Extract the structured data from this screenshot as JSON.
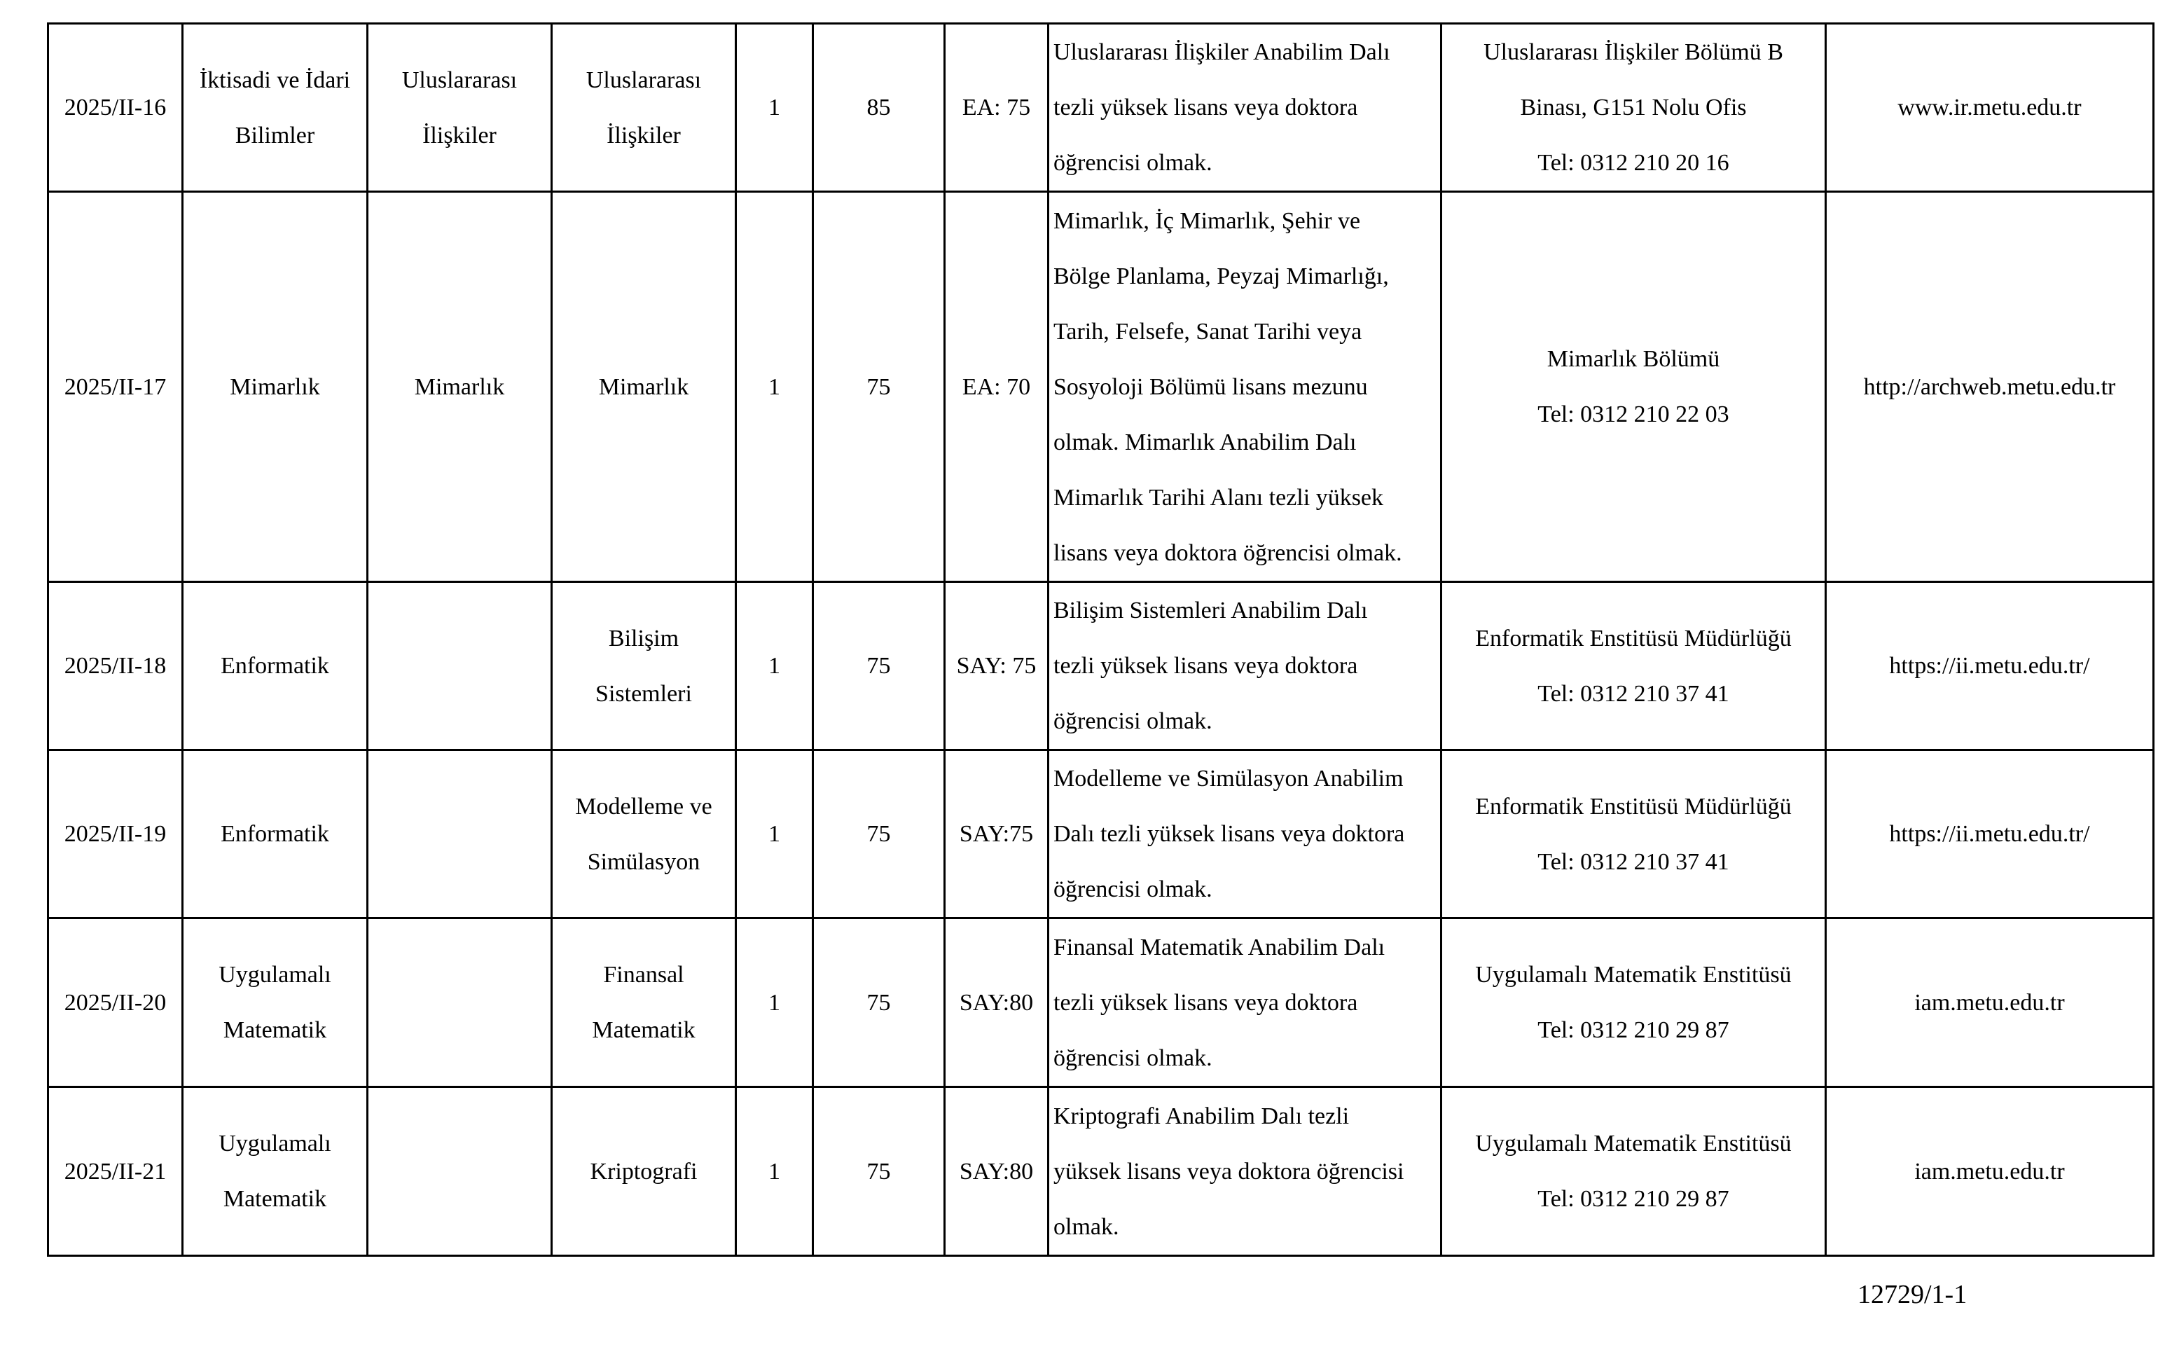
{
  "rows": [
    {
      "code": "2025/II-16",
      "unit": [
        "İktisadi ve İdari",
        "Bilimler"
      ],
      "dept": [
        "Uluslararası",
        "İlişkiler"
      ],
      "field": [
        "Uluslararası",
        "İlişkiler"
      ],
      "quota": "1",
      "ales": "85",
      "score": "EA: 75",
      "req": [
        "Uluslararası İlişkiler Anabilim Dalı",
        "tezli yüksek lisans veya doktora",
        "öğrencisi olmak."
      ],
      "contact": [
        "Uluslararası İlişkiler Bölümü B",
        "Binası, G151 Nolu Ofis",
        "Tel: 0312 210 20 16"
      ],
      "web": "www.ir.metu.edu.tr"
    },
    {
      "code": "2025/II-17",
      "unit": [
        "Mimarlık"
      ],
      "dept": [
        "Mimarlık"
      ],
      "field": [
        "Mimarlık"
      ],
      "quota": "1",
      "ales": "75",
      "score": "EA: 70",
      "req": [
        "Mimarlık, İç Mimarlık, Şehir ve",
        "Bölge Planlama, Peyzaj Mimarlığı,",
        "Tarih, Felsefe, Sanat Tarihi veya",
        "Sosyoloji Bölümü lisans mezunu",
        "olmak. Mimarlık Anabilim Dalı",
        "Mimarlık Tarihi Alanı tezli yüksek",
        "lisans veya doktora öğrencisi olmak."
      ],
      "contact": [
        "Mimarlık Bölümü",
        "Tel: 0312 210 22 03"
      ],
      "web": "http://archweb.metu.edu.tr"
    },
    {
      "code": "2025/II-18",
      "unit": [
        "Enformatik"
      ],
      "dept": [],
      "field": [
        "Bilişim",
        "Sistemleri"
      ],
      "quota": "1",
      "ales": "75",
      "score": "SAY: 75",
      "req": [
        "Bilişim Sistemleri Anabilim Dalı",
        "tezli yüksek lisans veya doktora",
        "öğrencisi olmak."
      ],
      "contact": [
        "Enformatik Enstitüsü Müdürlüğü",
        "Tel: 0312 210 37 41"
      ],
      "web": "https://ii.metu.edu.tr/"
    },
    {
      "code": "2025/II-19",
      "unit": [
        "Enformatik"
      ],
      "dept": [],
      "field": [
        "Modelleme ve",
        "Simülasyon"
      ],
      "quota": "1",
      "ales": "75",
      "score": "SAY:75",
      "req": [
        "Modelleme ve Simülasyon Anabilim",
        "Dalı tezli yüksek lisans veya doktora",
        "öğrencisi olmak."
      ],
      "contact": [
        "Enformatik Enstitüsü Müdürlüğü",
        "Tel: 0312 210 37 41"
      ],
      "web": "https://ii.metu.edu.tr/"
    },
    {
      "code": "2025/II-20",
      "unit": [
        "Uygulamalı",
        "Matematik"
      ],
      "dept": [],
      "field": [
        "Finansal",
        "Matematik"
      ],
      "quota": "1",
      "ales": "75",
      "score": "SAY:80",
      "req": [
        "Finansal Matematik Anabilim Dalı",
        "tezli yüksek lisans veya doktora",
        "öğrencisi olmak."
      ],
      "contact": [
        "Uygulamalı Matematik Enstitüsü",
        "Tel: 0312 210 29 87"
      ],
      "web": "iam.metu.edu.tr"
    },
    {
      "code": "2025/II-21",
      "unit": [
        "Uygulamalı",
        "Matematik"
      ],
      "dept": [],
      "field": [
        "Kriptografi"
      ],
      "quota": "1",
      "ales": "75",
      "score": "SAY:80",
      "req": [
        "Kriptografi Anabilim Dalı tezli",
        "yüksek lisans veya doktora öğrencisi",
        "olmak."
      ],
      "contact": [
        "Uygulamalı Matematik Enstitüsü",
        "Tel: 0312 210 29 87"
      ],
      "web": "iam.metu.edu.tr"
    }
  ],
  "footer": "12729/1-1"
}
